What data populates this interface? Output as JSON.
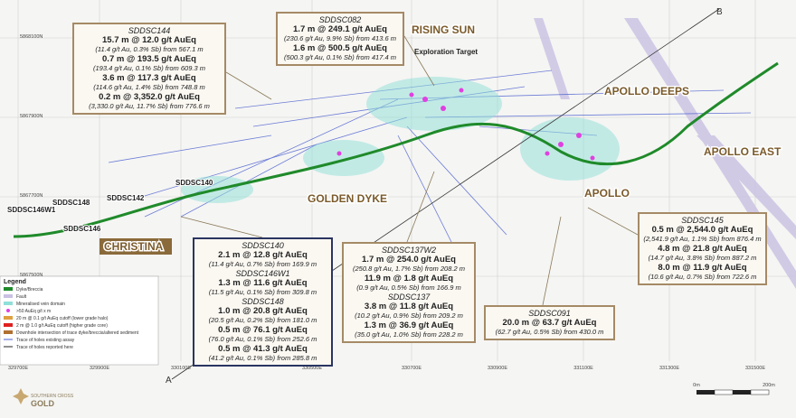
{
  "callouts": [
    {
      "holes": [
        {
          "name": "SDDSC144",
          "intercepts": [
            {
              "main": "15.7 m @ 12.0 g/t AuEq",
              "detail": "(11.4 g/t Au, 0.3% Sb) from 567.1 m"
            },
            {
              "main": "0.7 m @ 193.5 g/t AuEq",
              "detail": "(193.4 g/t Au, 0.1% Sb) from 609.3 m"
            },
            {
              "main": "3.6 m @ 117.3 g/t AuEq",
              "detail": "(114.6 g/t Au, 1.4% Sb) from 748.8 m"
            },
            {
              "main": "0.2 m @ 3,352.0 g/t AuEq",
              "detail": "(3,330.0 g/t Au, 11.7% Sb) from 776.6 m"
            }
          ]
        }
      ]
    },
    {
      "holes": [
        {
          "name": "SDDSC082",
          "intercepts": [
            {
              "main": "1.7 m @ 249.1 g/t AuEq",
              "detail": "(230.6 g/t Au, 9.9% Sb) from 413.6 m"
            },
            {
              "main": "1.6 m @ 500.5 g/t AuEq",
              "detail": "(500.3 g/t Au, 0.1% Sb) from 417.4 m"
            }
          ]
        }
      ]
    },
    {
      "holes": [
        {
          "name": "SDDSC145",
          "intercepts": [
            {
              "main": "0.5 m @ 2,544.0 g/t AuEq",
              "detail": "(2,541.9 g/t Au, 1.1% Sb) from 876.4 m"
            },
            {
              "main": "4.8 m @ 21.8 g/t AuEq",
              "detail": "(14.7 g/t Au, 3.8% Sb) from 887.2 m"
            },
            {
              "main": "8.0 m @ 11.9 g/t AuEq",
              "detail": "(10.6 g/t Au, 0.7% Sb) from 722.6 m"
            }
          ]
        }
      ]
    },
    {
      "holes": [
        {
          "name": "SDDSC140",
          "intercepts": [
            {
              "main": "2.1 m @ 12.8 g/t AuEq",
              "detail": "(11.4 g/t Au, 0.7% Sb) from 169.9 m"
            }
          ]
        },
        {
          "name": "SDDSC146W1",
          "intercepts": [
            {
              "main": "1.3 m @ 11.6 g/t AuEq",
              "detail": "(11.5 g/t Au, 0.1% Sb) from 309.8 m"
            }
          ]
        },
        {
          "name": "SDDSC148",
          "intercepts": [
            {
              "main": "1.0 m @ 20.8 g/t AuEq",
              "detail": "(20.5 g/t Au, 0.2% Sb) from 181.0 m"
            },
            {
              "main": "0.5 m @ 76.1 g/t AuEq",
              "detail": "(76.0 g/t Au, 0.1% Sb) from 252.6 m"
            },
            {
              "main": "0.5 m @ 41.3 g/t AuEq",
              "detail": "(41.2 g/t Au, 0.1% Sb) from 285.8 m"
            }
          ]
        }
      ]
    },
    {
      "holes": [
        {
          "name": "SDDSC137W2",
          "intercepts": [
            {
              "main": "1.7 m @ 254.0 g/t AuEq",
              "detail": "(250.8 g/t Au, 1.7% Sb) from 208.2 m"
            },
            {
              "main": "11.9 m @ 1.8 g/t AuEq",
              "detail": "(0.9 g/t Au, 0.5% Sb) from 166.9 m"
            }
          ]
        },
        {
          "name": "SDDSC137",
          "intercepts": [
            {
              "main": "3.8 m @ 11.8 g/t AuEq",
              "detail": "(10.2 g/t Au, 0.9% Sb) from 209.2 m"
            },
            {
              "main": "1.3 m @ 36.9 g/t AuEq",
              "detail": "(35.0 g/t Au, 1.0% Sb) from 228.2 m"
            }
          ]
        }
      ]
    },
    {
      "holes": [
        {
          "name": "SDDSC091",
          "intercepts": [
            {
              "main": "20.0 m @ 63.7 g/t AuEq",
              "detail": "(62.7 g/t Au, 0.5% Sb) from 430.0 m"
            }
          ]
        }
      ]
    }
  ],
  "areas": [
    "RISING SUN",
    "APOLLO DEEPS",
    "APOLLO EAST",
    "APOLLO",
    "GOLDEN DYKE",
    "CHRISTINA"
  ],
  "exploration_target": "Exploration Target",
  "hole_labels": [
    "SDDSC148",
    "SDDSC146W1",
    "SDDSC146",
    "SDDSC142",
    "SDDSC140"
  ],
  "northings": [
    "5868100N",
    "5867900N",
    "5867700N",
    "5867500N"
  ],
  "eastings": [
    "329700E",
    "329900E",
    "330100E",
    "330500E",
    "330700E",
    "330900E",
    "331100E",
    "331300E",
    "331500E"
  ],
  "sections": [
    "A",
    "B"
  ],
  "legend": {
    "title": "Legend",
    "items": [
      "Dyke/Breccia",
      "Fault",
      "Mineralised vein domain",
      ">50 AuEq g/t x m",
      "20 m @ 0.1 g/t AuEq cutoff (lower grade halo)",
      "2 m @ 1.0 g/t AuEq cutoff (higher grade core)",
      "Downhole intersection of trace dyke/breccia/altered sediment",
      "Trace of holes existing assay",
      "Trace of holes reported here"
    ]
  },
  "scale": {
    "start": "0m",
    "end": "200m"
  },
  "logo": {
    "line1": "SOUTHERN CROSS",
    "line2": "GOLD"
  }
}
